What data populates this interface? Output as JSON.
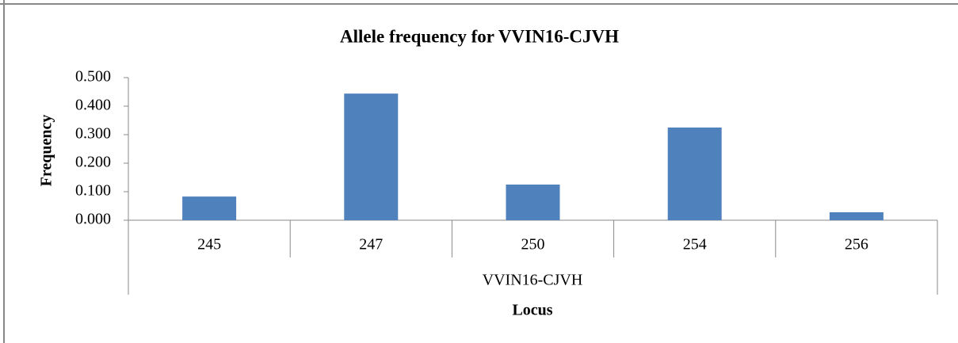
{
  "chart_data": {
    "type": "bar",
    "title": "Allele frequency for VVIN16-CJVH",
    "x_label": "Locus",
    "y_label": "Frequency",
    "group_label": "VVIN16-CJVH",
    "categories": [
      "245",
      "247",
      "250",
      "254",
      "256"
    ],
    "values": [
      0.083,
      0.444,
      0.125,
      0.325,
      0.028
    ],
    "color": "#4f81bd",
    "ylim": [
      0,
      0.5
    ],
    "yticks": [
      {
        "value": 0,
        "label": "0.000"
      },
      {
        "value": 0.1,
        "label": "0.100"
      },
      {
        "value": 0.2,
        "label": "0.200"
      },
      {
        "value": 0.3,
        "label": "0.300"
      },
      {
        "value": 0.4,
        "label": "0.400"
      },
      {
        "value": 0.5,
        "label": "0.500"
      }
    ],
    "grid": false
  }
}
